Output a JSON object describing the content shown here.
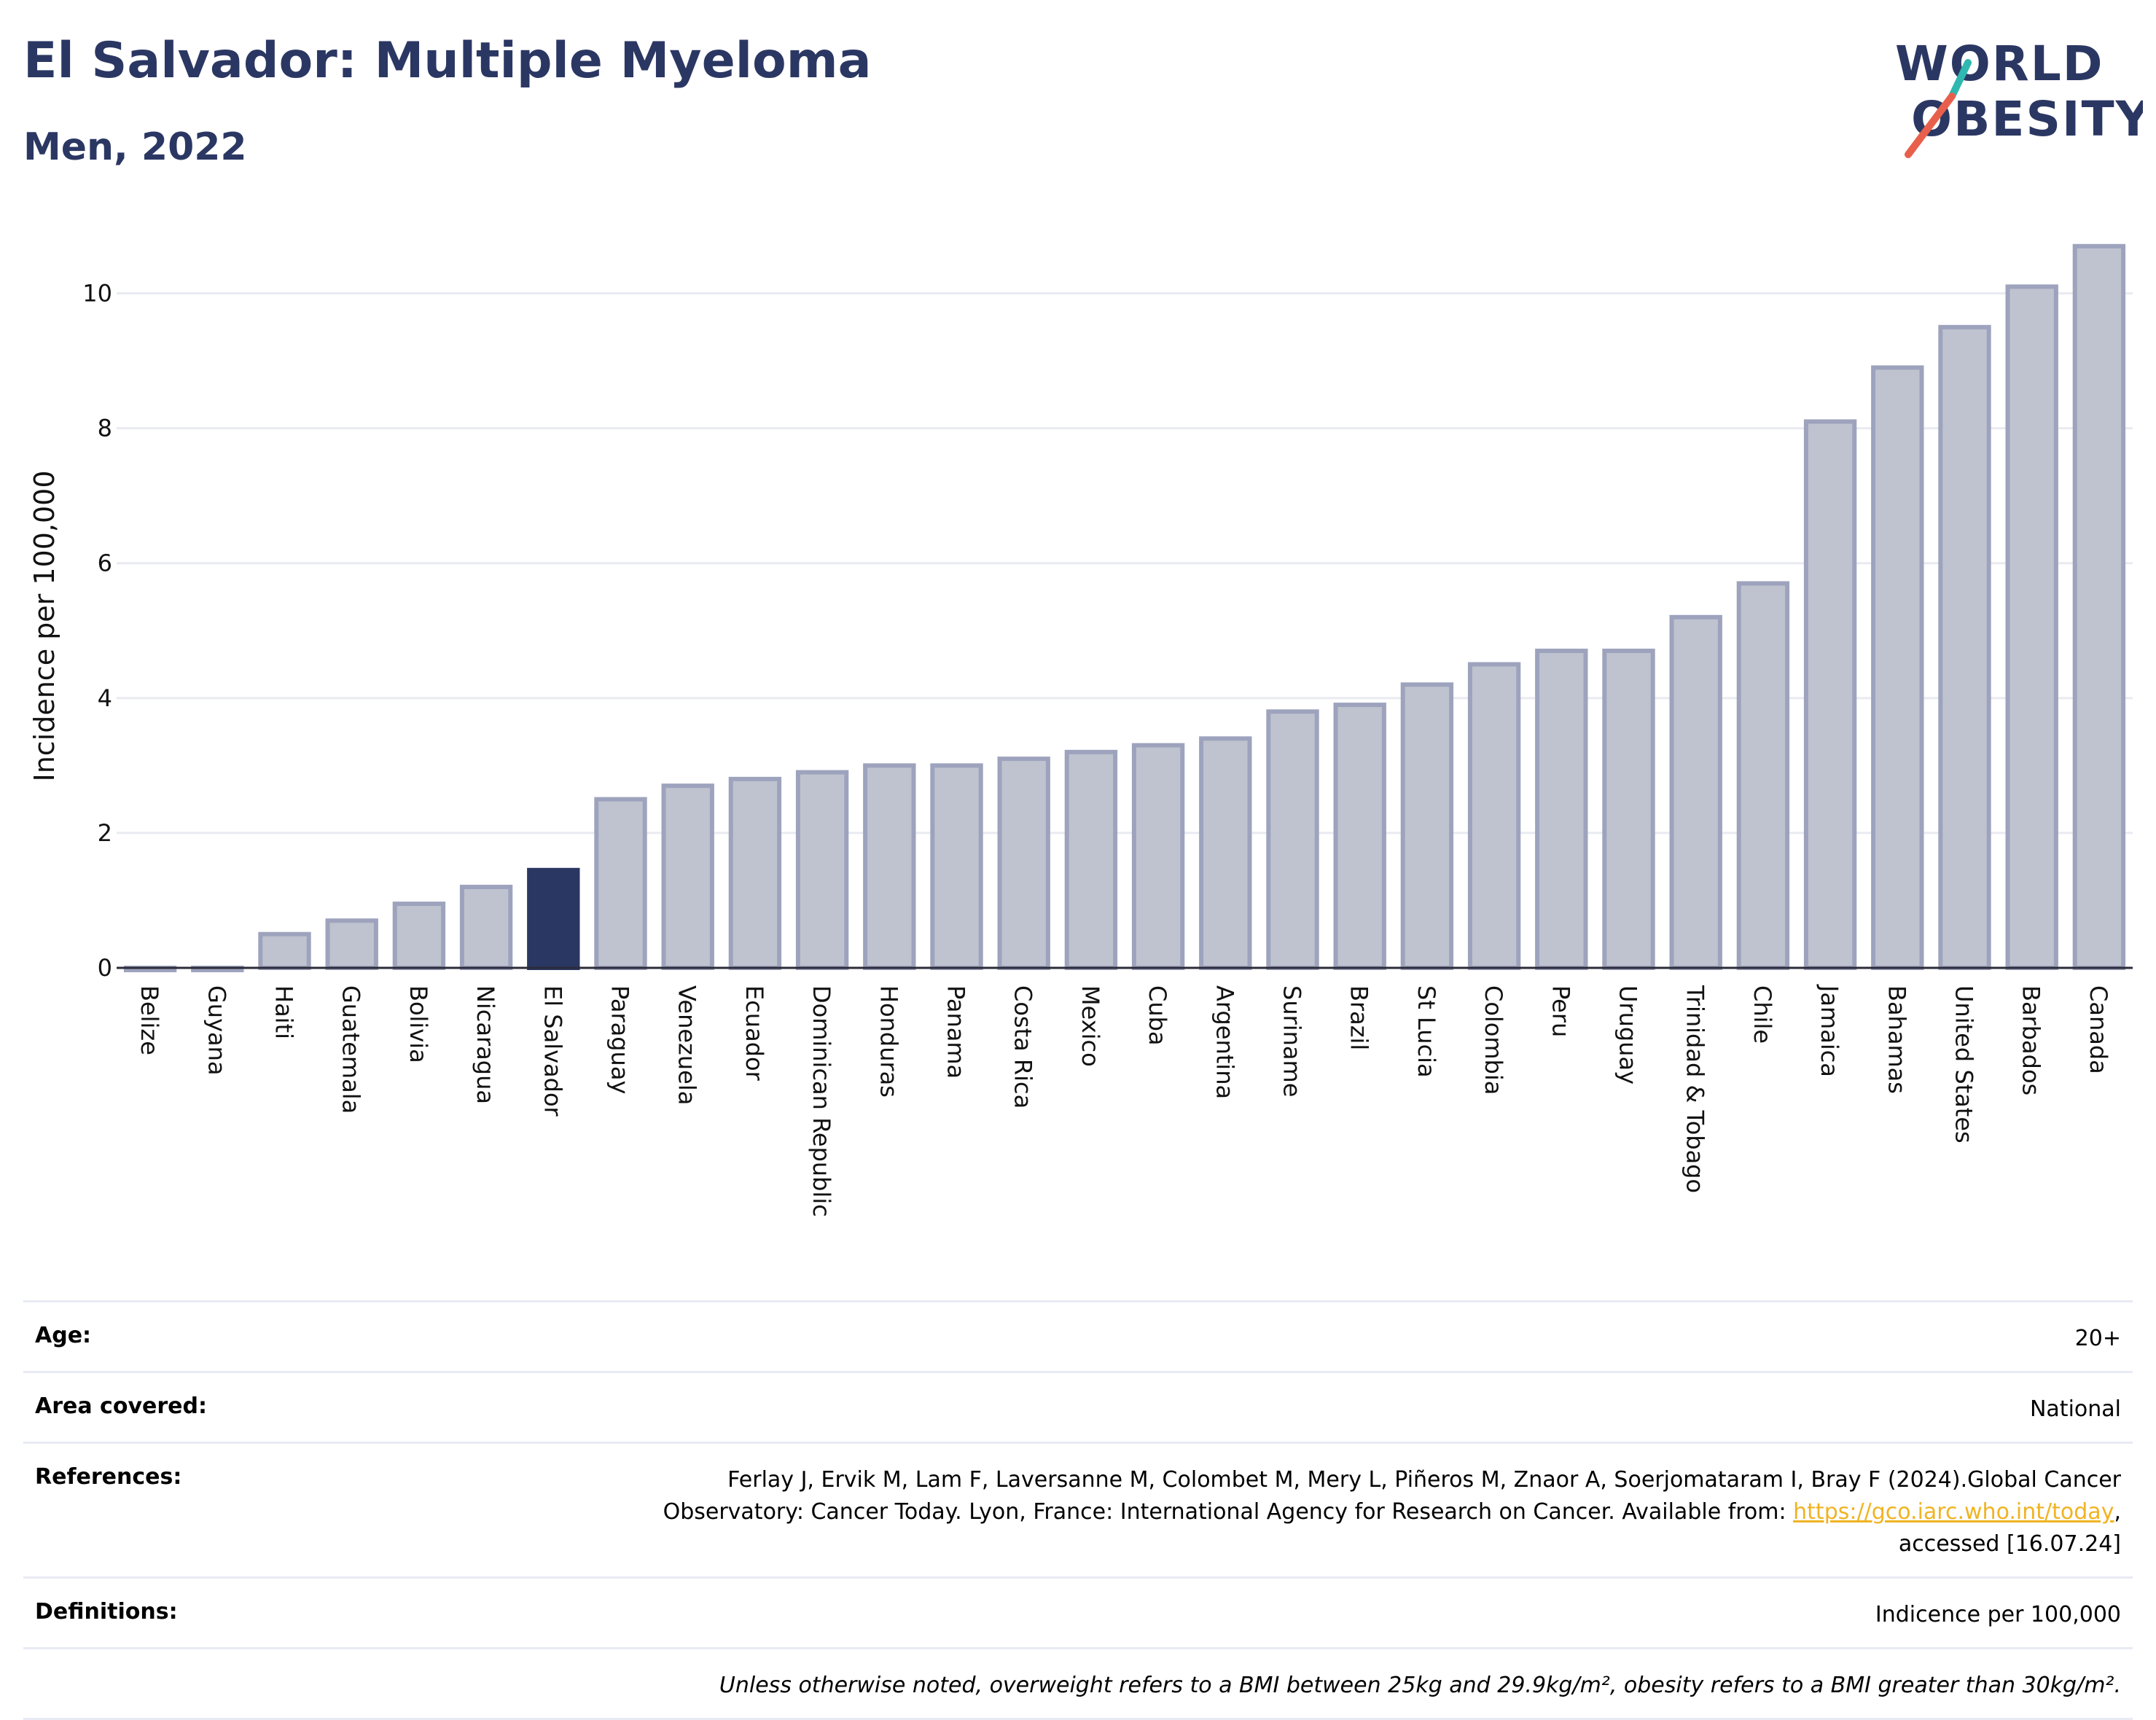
{
  "header": {
    "title": "El Salvador: Multiple Myeloma",
    "subtitle": "Men, 2022"
  },
  "logo": {
    "line1": "WORLD",
    "line2": "OBESITY",
    "colors": {
      "text": "#2b3763",
      "slash_teal": "#2fb8b0",
      "slash_red": "#e8604c"
    }
  },
  "chart_data": {
    "type": "bar",
    "ylabel": "Incidence per 100,000",
    "xlabel": "",
    "ylim": [
      0,
      11
    ],
    "yticks": [
      0,
      2,
      4,
      6,
      8,
      10
    ],
    "grid": true,
    "highlight": "El Salvador",
    "colors": {
      "bar": "#bfc3cf",
      "bar_edge": "#9ea3bd",
      "highlight": "#2b3763",
      "grid": "#e9ebf1"
    },
    "categories": [
      "Belize",
      "Guyana",
      "Haiti",
      "Guatemala",
      "Bolivia",
      "Nicaragua",
      "El Salvador",
      "Paraguay",
      "Venezuela",
      "Ecuador",
      "Dominican Republic",
      "Honduras",
      "Panama",
      "Costa Rica",
      "Mexico",
      "Cuba",
      "Argentina",
      "Suriname",
      "Brazil",
      "St Lucia",
      "Colombia",
      "Peru",
      "Uruguay",
      "Trinidad & Tobago",
      "Chile",
      "Jamaica",
      "Bahamas",
      "United States",
      "Barbados",
      "Canada"
    ],
    "values": [
      0.0,
      0.0,
      0.5,
      0.7,
      0.95,
      1.2,
      1.45,
      2.5,
      2.7,
      2.8,
      2.9,
      3.0,
      3.0,
      3.1,
      3.2,
      3.3,
      3.4,
      3.8,
      3.9,
      4.2,
      4.5,
      4.7,
      4.7,
      5.2,
      5.7,
      8.1,
      8.9,
      9.5,
      10.1,
      10.7
    ]
  },
  "info": {
    "age_label": "Age:",
    "age_value": "20+",
    "area_label": "Area covered:",
    "area_value": "National",
    "references_label": "References:",
    "references_line1": "Ferlay J, Ervik M, Lam F, Laversanne M, Colombet M, Mery L, Piñeros M, Znaor A, Soerjomataram I, Bray F (2024).Global Cancer",
    "references_line2": "Observatory: Cancer Today. Lyon, France: International Agency for Research on Cancer. Available from: ",
    "references_link": "https://gco.iarc.who.int/today",
    "references_line2_end": ",",
    "references_line3": "accessed [16.07.24]",
    "definitions_label": "Definitions:",
    "definitions_value": "Indicence per 100,000",
    "note": "Unless otherwise noted, overweight refers to a BMI between 25kg and 29.9kg/m², obesity refers to a BMI greater than 30kg/m²."
  }
}
